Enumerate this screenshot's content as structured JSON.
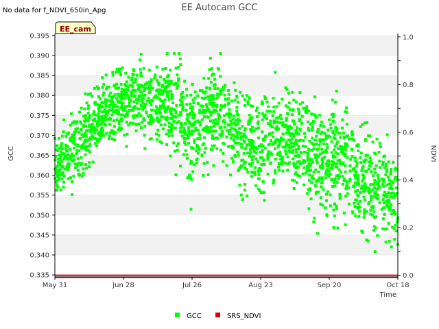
{
  "chart_data": {
    "type": "scatter",
    "title": "EE Autocam GCC",
    "no_data_note": "No data for f_NDVI_650in_Apg",
    "site_badge": "EE_cam",
    "xlabel": "Time",
    "ylabel": "GCC",
    "y2label": "NDVI",
    "x_range_days": [
      0,
      140
    ],
    "x_ticks": [
      {
        "day": 0,
        "label": "May 31"
      },
      {
        "day": 28,
        "label": "Jun 28"
      },
      {
        "day": 56,
        "label": "Jul 26"
      },
      {
        "day": 84,
        "label": "Aug 23"
      },
      {
        "day": 112,
        "label": "Sep 20"
      },
      {
        "day": 140,
        "label": "Oct 18"
      }
    ],
    "ylim": [
      0.3345,
      0.3955
    ],
    "y_ticks": [
      "0.335",
      "0.340",
      "0.345",
      "0.350",
      "0.355",
      "0.360",
      "0.365",
      "0.370",
      "0.375",
      "0.380",
      "0.385",
      "0.390",
      "0.395"
    ],
    "y2lim": [
      -0.007,
      1.014
    ],
    "y2_ticks": [
      "0.0",
      "0.2",
      "0.4",
      "0.6",
      "0.8",
      "1.0"
    ],
    "series": [
      {
        "name": "GCC",
        "color": "#00ff00",
        "axis": "left",
        "trend": [
          {
            "day": 0,
            "mean": 0.361,
            "spread": 0.004
          },
          {
            "day": 7,
            "mean": 0.3665,
            "spread": 0.004
          },
          {
            "day": 15,
            "mean": 0.3715,
            "spread": 0.004
          },
          {
            "day": 22,
            "mean": 0.3765,
            "spread": 0.004
          },
          {
            "day": 28,
            "mean": 0.3785,
            "spread": 0.004
          },
          {
            "day": 35,
            "mean": 0.3795,
            "spread": 0.0045
          },
          {
            "day": 42,
            "mean": 0.377,
            "spread": 0.005
          },
          {
            "day": 50,
            "mean": 0.3775,
            "spread": 0.0055
          },
          {
            "day": 56,
            "mean": 0.371,
            "spread": 0.007
          },
          {
            "day": 63,
            "mean": 0.3755,
            "spread": 0.006
          },
          {
            "day": 70,
            "mean": 0.3735,
            "spread": 0.006
          },
          {
            "day": 78,
            "mean": 0.3685,
            "spread": 0.006
          },
          {
            "day": 85,
            "mean": 0.369,
            "spread": 0.0065
          },
          {
            "day": 92,
            "mean": 0.3705,
            "spread": 0.0055
          },
          {
            "day": 99,
            "mean": 0.368,
            "spread": 0.006
          },
          {
            "day": 106,
            "mean": 0.3635,
            "spread": 0.007
          },
          {
            "day": 113,
            "mean": 0.365,
            "spread": 0.007
          },
          {
            "day": 120,
            "mean": 0.3625,
            "spread": 0.0065
          },
          {
            "day": 127,
            "mean": 0.3595,
            "spread": 0.007
          },
          {
            "day": 134,
            "mean": 0.3555,
            "spread": 0.0065
          },
          {
            "day": 140,
            "mean": 0.3535,
            "spread": 0.006
          }
        ],
        "samples_per_day": 15,
        "y_clip": [
          0.3385,
          0.3905
        ]
      },
      {
        "name": "SRS_NDVI",
        "color": "#dd0000",
        "axis": "right",
        "values": [
          0.0,
          0.0
        ]
      }
    ],
    "legend": [
      "GCC",
      "SRS_NDVI"
    ],
    "legend_position": "bottom-center",
    "grid": "alternating horizontal bands"
  }
}
